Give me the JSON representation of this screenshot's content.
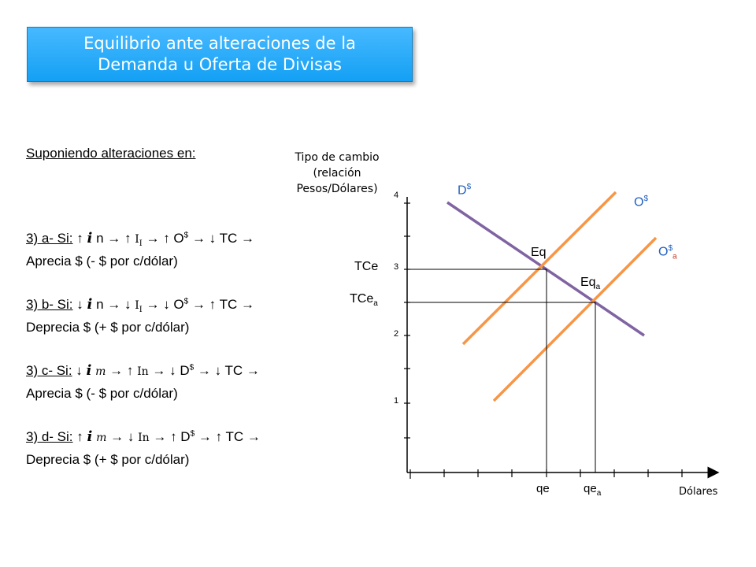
{
  "title": {
    "line1": "Equilibrio ante alteraciones de la",
    "line2": "Demanda u Oferta de Divisas"
  },
  "intro": "Suponiendo alteraciones en:",
  "cases": [
    {
      "label": "3) a- Si:",
      "a1": "↑",
      "v": "i",
      "vsub": "n",
      "a2": "→ ↑",
      "m": "I",
      "msub": "I",
      "a3": "→ ↑ O",
      "sup": "$",
      "tail": "→ ↓ TC →",
      "line2": "Aprecia $ (- $ por c/dólar)"
    },
    {
      "label": "3) b- Si:",
      "a1": "↓",
      "v": "i",
      "vsub": "n",
      "a2": "→ ↓",
      "m": "I",
      "msub": "I",
      "a3": "→ ↓ O",
      "sup": "$",
      "tail": "→ ↑ TC →",
      "line2": "Deprecia $ (+ $ por c/dólar)"
    },
    {
      "label": "3) c- Si:",
      "a1": "↓",
      "v": "i",
      "vsub": "m",
      "a2": "→ ↑",
      "m": "In",
      "msub": "",
      "a3": "→ ↓ D",
      "sup": "$",
      "tail": "→ ↓ TC →",
      "line2": "Aprecia $ (- $ por c/dólar)"
    },
    {
      "label": "3) d- Si:",
      "a1": "↑",
      "v": "i",
      "vsub": "m",
      "a2": "→ ↓",
      "m": "In",
      "msub": "",
      "a3": "→ ↑ D",
      "sup": "$",
      "tail": "→ ↑ TC →",
      "line2": "Deprecia $ (+ $ por c/dólar)"
    }
  ],
  "graph": {
    "y_axis_title": [
      "Tipo de cambio",
      "(relación",
      "Pesos/Dólares)"
    ],
    "x_axis_title": "Dólares",
    "y_ticks": [
      "4",
      "3",
      "2",
      "1"
    ],
    "tce": "TCe",
    "tcea": "TCe",
    "tcea_sub": "a",
    "qe": "qe",
    "qea": "qe",
    "qea_sub": "a",
    "eq": "Eq",
    "eqa": "Eq",
    "eqa_sub": "a",
    "demand": "D",
    "demand_sup": "$",
    "supply": "O",
    "supply_sup": "$",
    "supply_a": "O",
    "supply_a_sup": "$",
    "supply_a_sub": "a",
    "colors": {
      "demand": "#8064a2",
      "supply": "#f79646",
      "label_blue": "#1f5fbf",
      "title_box": "#1ba6f7"
    }
  }
}
